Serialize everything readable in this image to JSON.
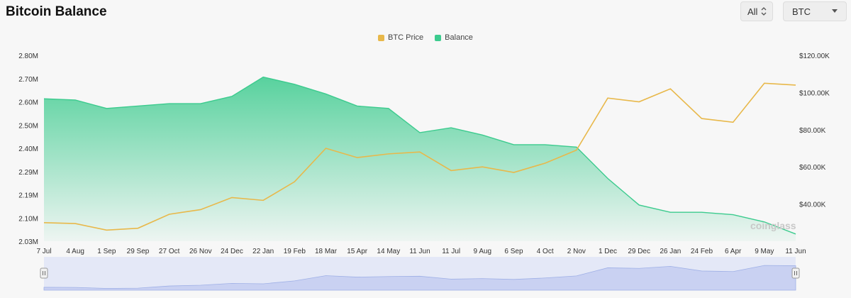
{
  "header": {
    "title": "Bitcoin Balance"
  },
  "controls": {
    "range": {
      "value": "All",
      "icon": "up-down-chevron-icon"
    },
    "coin": {
      "value": "BTC",
      "icon": "caret-down-icon"
    }
  },
  "watermark": "coinglass",
  "colors": {
    "price": "#E8B84A",
    "balance": "#3CCB8E",
    "navigator": "#c9d1f2"
  },
  "chart_data": {
    "type": "area",
    "title": "Bitcoin Balance",
    "x": [
      "7 Jul",
      "4 Aug",
      "1 Sep",
      "29 Sep",
      "27 Oct",
      "26 Nov",
      "24 Dec",
      "22 Jan",
      "19 Feb",
      "18 Mar",
      "15 Apr",
      "14 May",
      "11 Jun",
      "11 Jul",
      "9 Aug",
      "6 Sep",
      "4 Oct",
      "2 Nov",
      "1 Dec",
      "29 Dec",
      "26 Jan",
      "24 Feb",
      "6 Apr",
      "9 May",
      "11 Jun"
    ],
    "left_axis_ticks": [
      "2.80M",
      "2.70M",
      "2.60M",
      "2.50M",
      "2.40M",
      "2.29M",
      "2.19M",
      "2.10M",
      "2.03M"
    ],
    "right_axis_ticks": [
      "$120.00K",
      "$100.00K",
      "$80.00K",
      "$60.00K",
      "$40.00K"
    ],
    "ylim_left": [
      2030000,
      2800000
    ],
    "ylim_right": [
      20000,
      120000
    ],
    "series": [
      {
        "name": "BTC Price",
        "axis": "right",
        "values": [
          30000,
          29500,
          26000,
          27000,
          34500,
          37000,
          43500,
          42000,
          52000,
          70000,
          65000,
          67000,
          68000,
          58000,
          60000,
          57000,
          62000,
          69000,
          97000,
          95000,
          102000,
          86000,
          84000,
          105000,
          104000
        ]
      },
      {
        "name": "Balance",
        "axis": "left",
        "values": [
          2620000,
          2615000,
          2580000,
          2590000,
          2600000,
          2600000,
          2630000,
          2710000,
          2680000,
          2640000,
          2590000,
          2580000,
          2480000,
          2500000,
          2470000,
          2430000,
          2430000,
          2420000,
          2290000,
          2180000,
          2150000,
          2150000,
          2140000,
          2110000,
          2060000
        ]
      }
    ],
    "legend": "top-center",
    "grid": false
  }
}
